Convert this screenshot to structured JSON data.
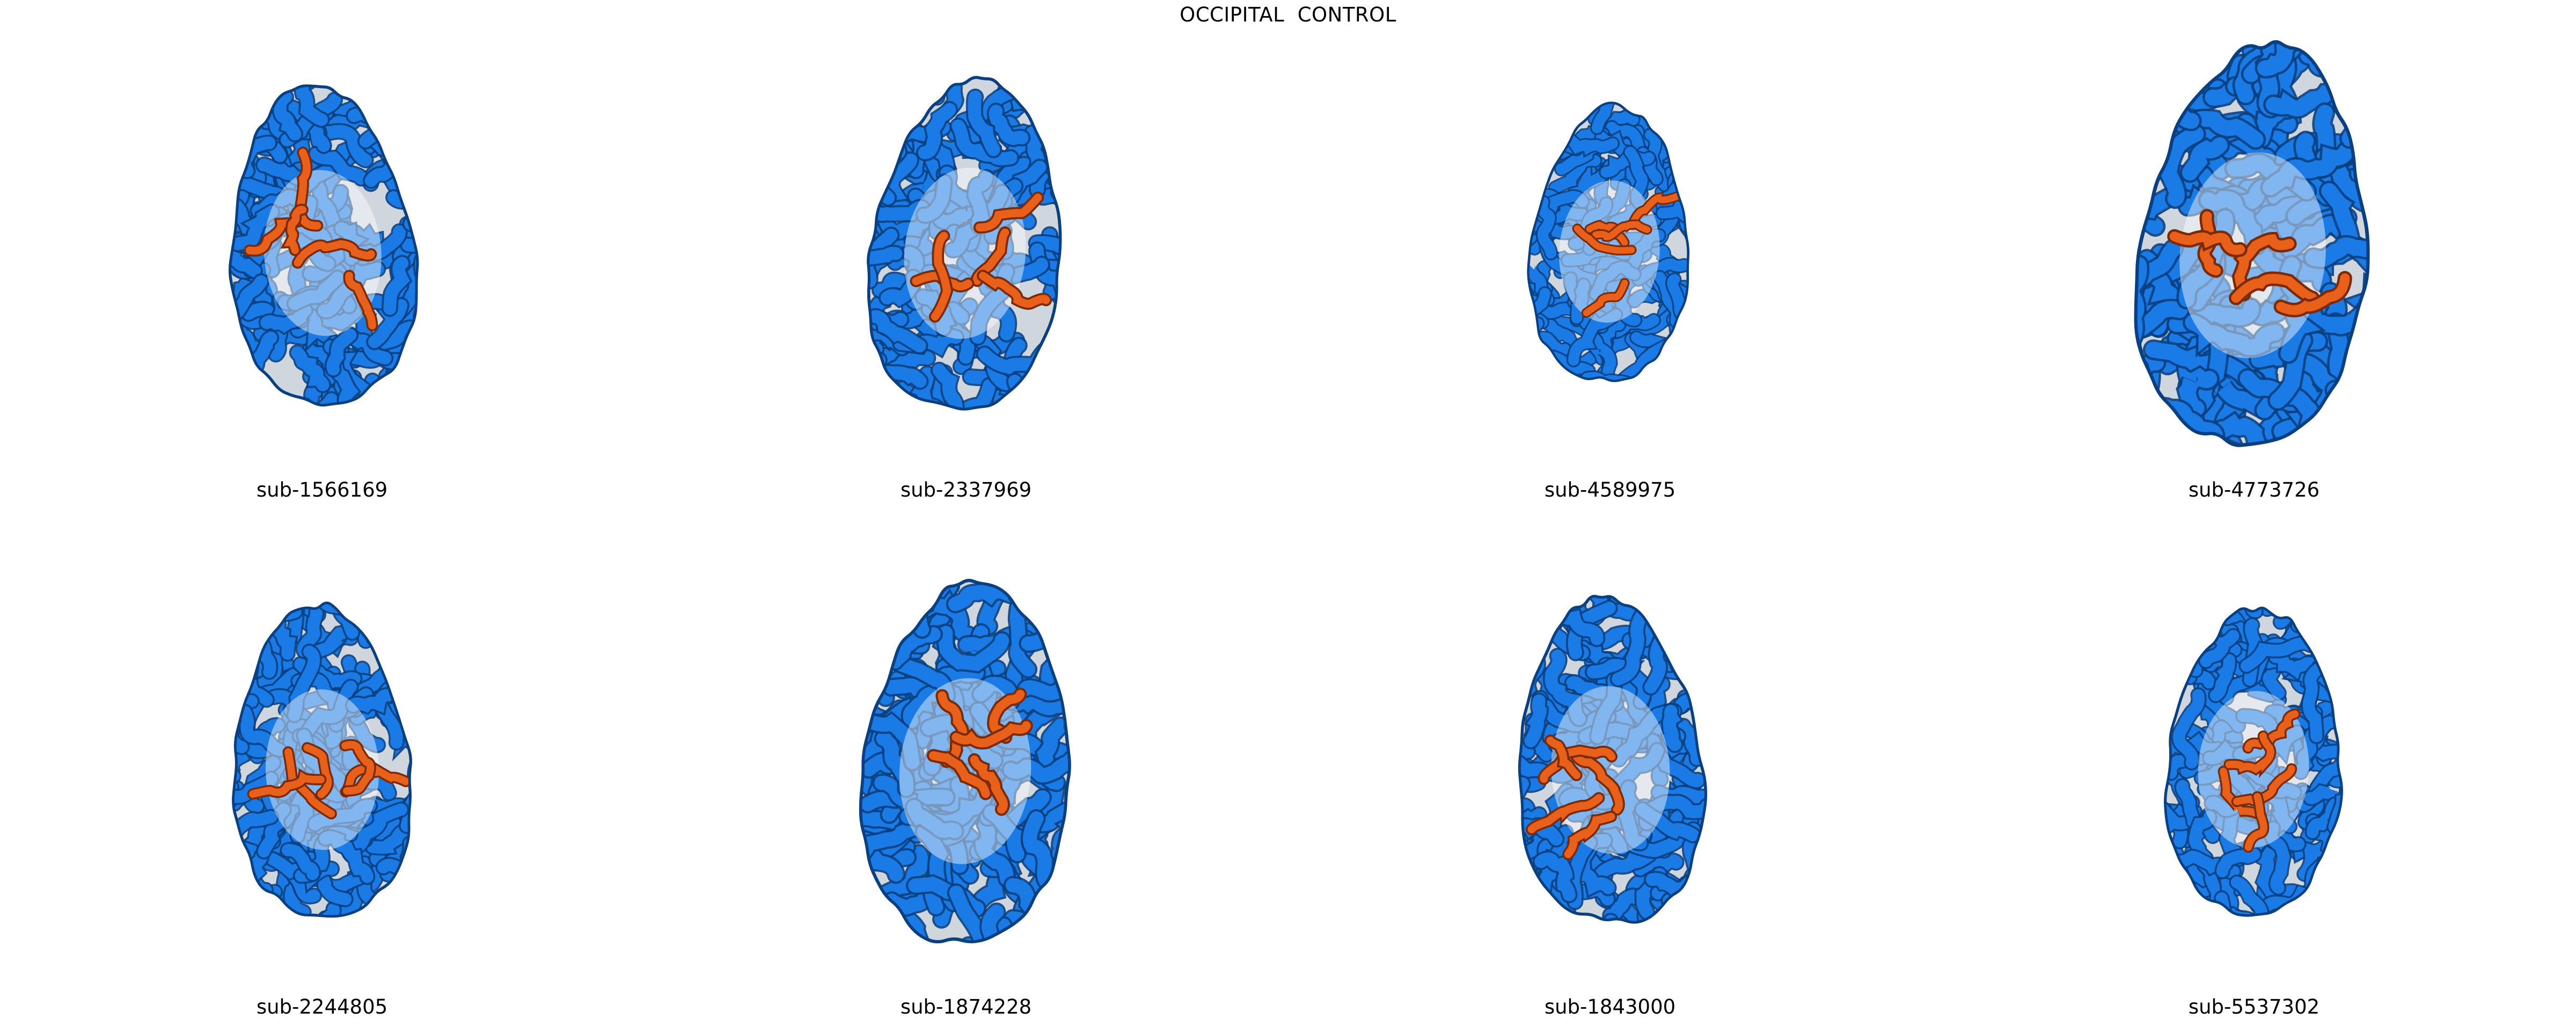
{
  "title": "OCCIPITAL  CONTROL",
  "colors": {
    "sulci_blue": "#1a7ae6",
    "sulci_dark": "#0a3f80",
    "ghost_gray": "#cfd6de",
    "highlight_orange": "#e8601a",
    "highlight_dark": "#7a2a05"
  },
  "subjects": [
    {
      "id": "sub-1566169",
      "scale": 0.91,
      "tilt": -4
    },
    {
      "id": "sub-2337969",
      "scale": 0.94,
      "tilt": 6
    },
    {
      "id": "sub-4589975",
      "scale": 0.78,
      "tilt": 4
    },
    {
      "id": "sub-4773726",
      "scale": 1.13,
      "tilt": 6
    },
    {
      "id": "sub-2244805",
      "scale": 0.88,
      "tilt": -2
    },
    {
      "id": "sub-1874228",
      "scale": 1.02,
      "tilt": 4
    },
    {
      "id": "sub-1843000",
      "scale": 0.92,
      "tilt": -3
    },
    {
      "id": "sub-5537302",
      "scale": 0.86,
      "tilt": 3
    }
  ]
}
